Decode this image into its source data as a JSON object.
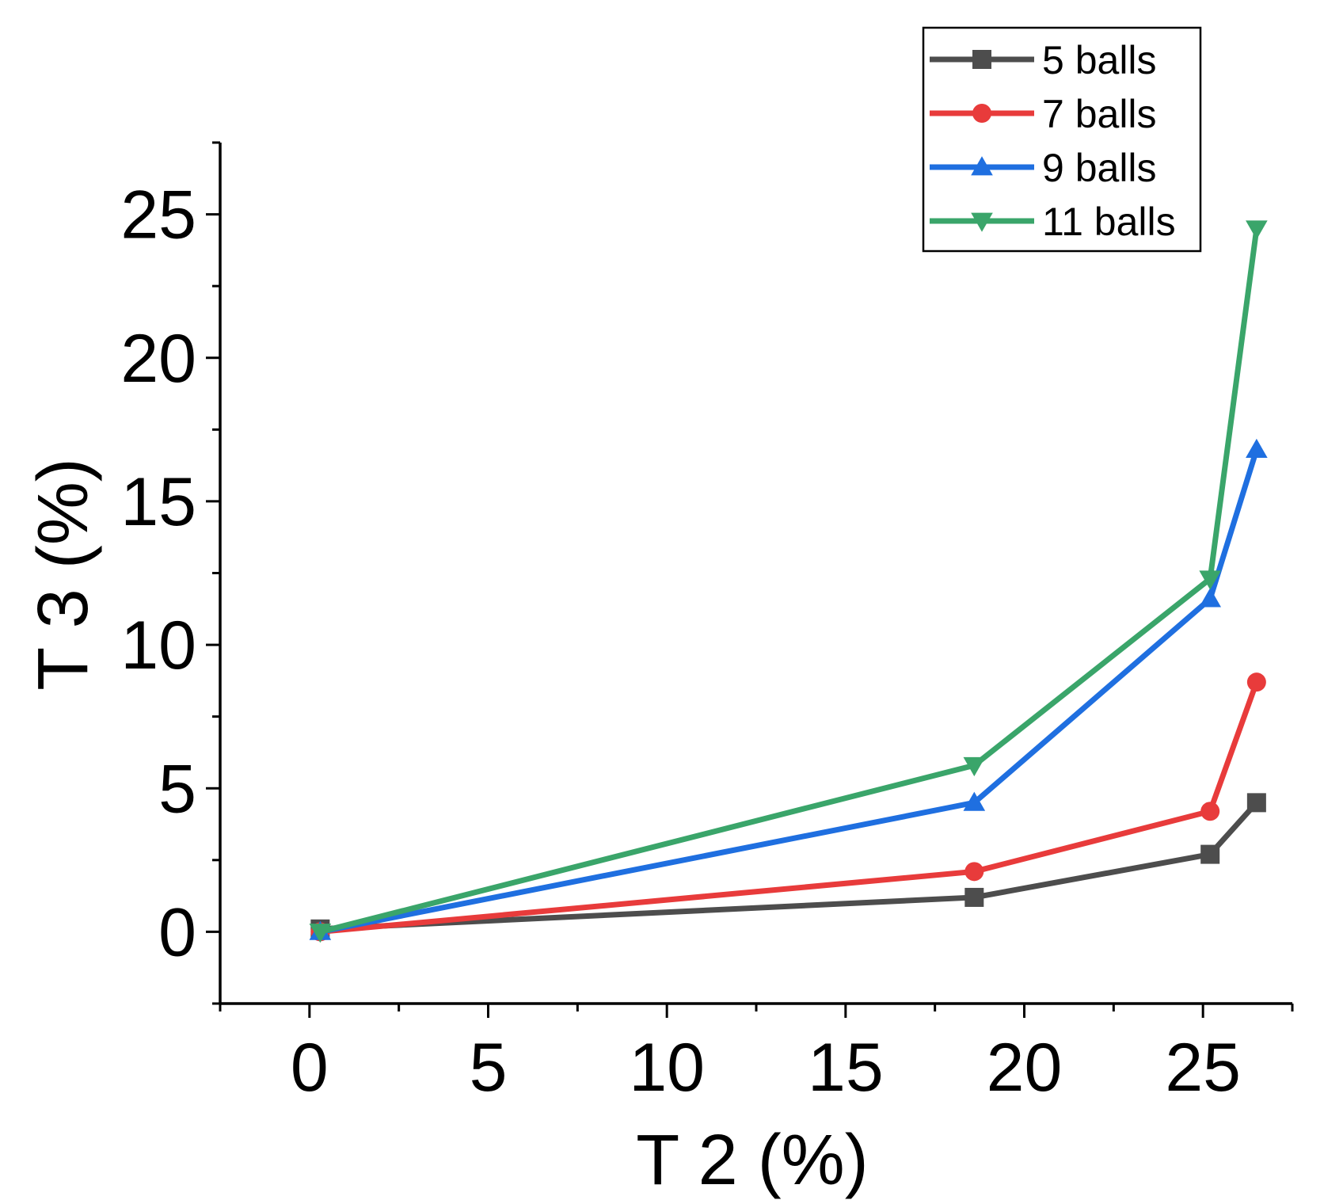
{
  "chart_data": {
    "type": "line",
    "title": "",
    "xlabel": "T 2 (%)",
    "ylabel": "T 3 (%)",
    "xlim": [
      -2.5,
      27.5
    ],
    "ylim": [
      -2.5,
      27.5
    ],
    "xticks": [
      "0",
      "5",
      "10",
      "15",
      "20",
      "25"
    ],
    "yticks": [
      "0",
      "5",
      "10",
      "15",
      "20",
      "25"
    ],
    "grid": false,
    "legend_position": "top-right",
    "series": [
      {
        "name": "5 balls",
        "color": "#4d4d4d",
        "marker": "square",
        "x": [
          0.3,
          18.6,
          25.2,
          26.5
        ],
        "y": [
          0.1,
          1.2,
          2.7,
          4.5
        ]
      },
      {
        "name": "7 balls",
        "color": "#e83b3b",
        "marker": "circle",
        "x": [
          0.3,
          18.6,
          25.2,
          26.5
        ],
        "y": [
          0.0,
          2.1,
          4.2,
          8.7
        ]
      },
      {
        "name": "9 balls",
        "color": "#1f6fe0",
        "marker": "triangle-up",
        "x": [
          0.3,
          18.6,
          25.2,
          26.5
        ],
        "y": [
          0.0,
          4.5,
          11.6,
          16.8
        ]
      },
      {
        "name": "11 balls",
        "color": "#3aa56a",
        "marker": "triangle-down",
        "x": [
          0.3,
          18.6,
          25.2,
          26.5
        ],
        "y": [
          0.0,
          5.8,
          12.3,
          24.5
        ]
      }
    ]
  }
}
